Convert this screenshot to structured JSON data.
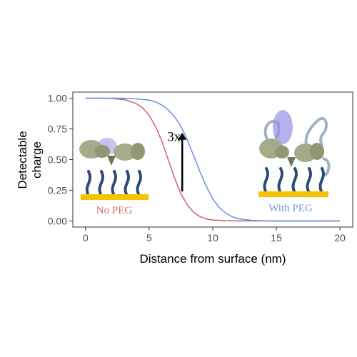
{
  "chart_data": {
    "type": "line",
    "xlabel": "Distance from surface (nm)",
    "ylabel": [
      "Detectable",
      "charge"
    ],
    "xlim": [
      -1,
      21
    ],
    "ylim": [
      -0.05,
      1.05
    ],
    "xticks": [
      0,
      5,
      10,
      15,
      20
    ],
    "yticks": [
      0.0,
      0.25,
      0.5,
      0.75,
      1.0
    ],
    "ytick_labels": [
      "0.00",
      "0.25",
      "0.50",
      "0.75",
      "1.00"
    ],
    "grid": false,
    "series": [
      {
        "key": "no_peg",
        "color": "#d0696e",
        "x": [
          0,
          1,
          2,
          3,
          3.5,
          4,
          4.5,
          5,
          5.5,
          6,
          6.5,
          7,
          7.5,
          8,
          8.5,
          9,
          9.5,
          10,
          11,
          12,
          13,
          15,
          20
        ],
        "y": [
          1.0,
          1.0,
          0.998,
          0.99,
          0.975,
          0.955,
          0.92,
          0.86,
          0.77,
          0.65,
          0.5,
          0.35,
          0.22,
          0.13,
          0.07,
          0.035,
          0.016,
          0.007,
          0.002,
          0.0,
          0.0,
          0.0,
          0.0
        ]
      },
      {
        "key": "with_peg",
        "color": "#6f95e8",
        "x": [
          0,
          2,
          3,
          4,
          5,
          5.5,
          6,
          6.5,
          7,
          7.5,
          8,
          8.5,
          9,
          9.5,
          10,
          10.5,
          11,
          11.5,
          12,
          13,
          14,
          15,
          20
        ],
        "y": [
          1.0,
          1.0,
          1.0,
          0.995,
          0.985,
          0.97,
          0.945,
          0.905,
          0.85,
          0.77,
          0.66,
          0.53,
          0.4,
          0.28,
          0.18,
          0.11,
          0.065,
          0.035,
          0.018,
          0.005,
          0.001,
          0.0,
          0.0
        ]
      }
    ],
    "annotation": {
      "text": "3x",
      "arrow_x": 7.6,
      "arrow_y_from": 0.24,
      "arrow_y_to": 0.72
    },
    "illustration_labels": {
      "left": "No PEG",
      "right": "With PEG"
    }
  },
  "colors": {
    "surface": "#f5c400",
    "linker": "#2e4a78",
    "peg": "#9fb3c6",
    "protein": "#a3ab8a",
    "protein_dark": "#6e7558",
    "charge_glow": "#9a8fe6",
    "axis": "#333333"
  }
}
